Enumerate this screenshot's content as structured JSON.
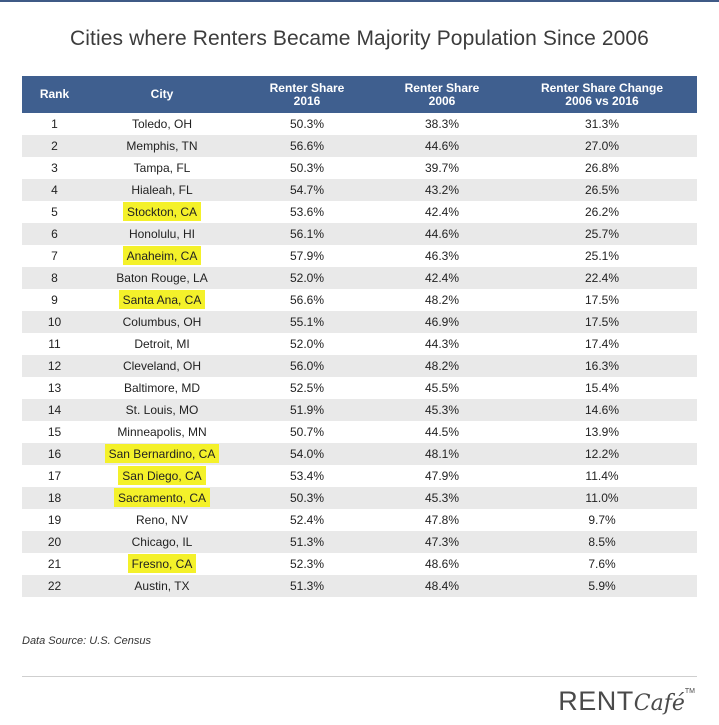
{
  "title": "Cities where Renters Became Majority Population Since 2006",
  "chart_data": {
    "type": "table",
    "title": "Cities where Renters Became Majority Population Since 2006",
    "columns": [
      [
        "Rank"
      ],
      [
        "City"
      ],
      [
        "Renter Share",
        "2016"
      ],
      [
        "Renter Share",
        "2006"
      ],
      [
        "Renter Share Change",
        "2006 vs 2016"
      ]
    ],
    "rows": [
      {
        "rank": "1",
        "city": "Toledo, OH",
        "share_2016": "50.3%",
        "share_2006": "38.3%",
        "change": "31.3%",
        "highlighted": false
      },
      {
        "rank": "2",
        "city": "Memphis, TN",
        "share_2016": "56.6%",
        "share_2006": "44.6%",
        "change": "27.0%",
        "highlighted": false
      },
      {
        "rank": "3",
        "city": "Tampa, FL",
        "share_2016": "50.3%",
        "share_2006": "39.7%",
        "change": "26.8%",
        "highlighted": false
      },
      {
        "rank": "4",
        "city": "Hialeah, FL",
        "share_2016": "54.7%",
        "share_2006": "43.2%",
        "change": "26.5%",
        "highlighted": false
      },
      {
        "rank": "5",
        "city": "Stockton, CA",
        "share_2016": "53.6%",
        "share_2006": "42.4%",
        "change": "26.2%",
        "highlighted": true
      },
      {
        "rank": "6",
        "city": "Honolulu, HI",
        "share_2016": "56.1%",
        "share_2006": "44.6%",
        "change": "25.7%",
        "highlighted": false
      },
      {
        "rank": "7",
        "city": "Anaheim, CA",
        "share_2016": "57.9%",
        "share_2006": "46.3%",
        "change": "25.1%",
        "highlighted": true
      },
      {
        "rank": "8",
        "city": "Baton Rouge, LA",
        "share_2016": "52.0%",
        "share_2006": "42.4%",
        "change": "22.4%",
        "highlighted": false
      },
      {
        "rank": "9",
        "city": "Santa Ana, CA",
        "share_2016": "56.6%",
        "share_2006": "48.2%",
        "change": "17.5%",
        "highlighted": true
      },
      {
        "rank": "10",
        "city": "Columbus, OH",
        "share_2016": "55.1%",
        "share_2006": "46.9%",
        "change": "17.5%",
        "highlighted": false
      },
      {
        "rank": "11",
        "city": "Detroit, MI",
        "share_2016": "52.0%",
        "share_2006": "44.3%",
        "change": "17.4%",
        "highlighted": false
      },
      {
        "rank": "12",
        "city": "Cleveland, OH",
        "share_2016": "56.0%",
        "share_2006": "48.2%",
        "change": "16.3%",
        "highlighted": false
      },
      {
        "rank": "13",
        "city": "Baltimore, MD",
        "share_2016": "52.5%",
        "share_2006": "45.5%",
        "change": "15.4%",
        "highlighted": false
      },
      {
        "rank": "14",
        "city": "St. Louis, MO",
        "share_2016": "51.9%",
        "share_2006": "45.3%",
        "change": "14.6%",
        "highlighted": false
      },
      {
        "rank": "15",
        "city": "Minneapolis, MN",
        "share_2016": "50.7%",
        "share_2006": "44.5%",
        "change": "13.9%",
        "highlighted": false
      },
      {
        "rank": "16",
        "city": "San Bernardino, CA",
        "share_2016": "54.0%",
        "share_2006": "48.1%",
        "change": "12.2%",
        "highlighted": true
      },
      {
        "rank": "17",
        "city": "San Diego, CA",
        "share_2016": "53.4%",
        "share_2006": "47.9%",
        "change": "11.4%",
        "highlighted": true
      },
      {
        "rank": "18",
        "city": "Sacramento, CA",
        "share_2016": "50.3%",
        "share_2006": "45.3%",
        "change": "11.0%",
        "highlighted": true
      },
      {
        "rank": "19",
        "city": "Reno, NV",
        "share_2016": "52.4%",
        "share_2006": "47.8%",
        "change": "9.7%",
        "highlighted": false
      },
      {
        "rank": "20",
        "city": "Chicago, IL",
        "share_2016": "51.3%",
        "share_2006": "47.3%",
        "change": "8.5%",
        "highlighted": false
      },
      {
        "rank": "21",
        "city": "Fresno, CA",
        "share_2016": "52.3%",
        "share_2006": "48.6%",
        "change": "7.6%",
        "highlighted": true
      },
      {
        "rank": "22",
        "city": "Austin, TX",
        "share_2016": "51.3%",
        "share_2006": "48.4%",
        "change": "5.9%",
        "highlighted": false
      }
    ],
    "highlight_color": "#f4f12a",
    "header_color": "#3f5f8f",
    "stripe_color": "#e9e9e9"
  },
  "source": "Data Source: U.S. Census",
  "logo": {
    "part1": "RENT",
    "part2": "Café",
    "tm": "TM"
  }
}
